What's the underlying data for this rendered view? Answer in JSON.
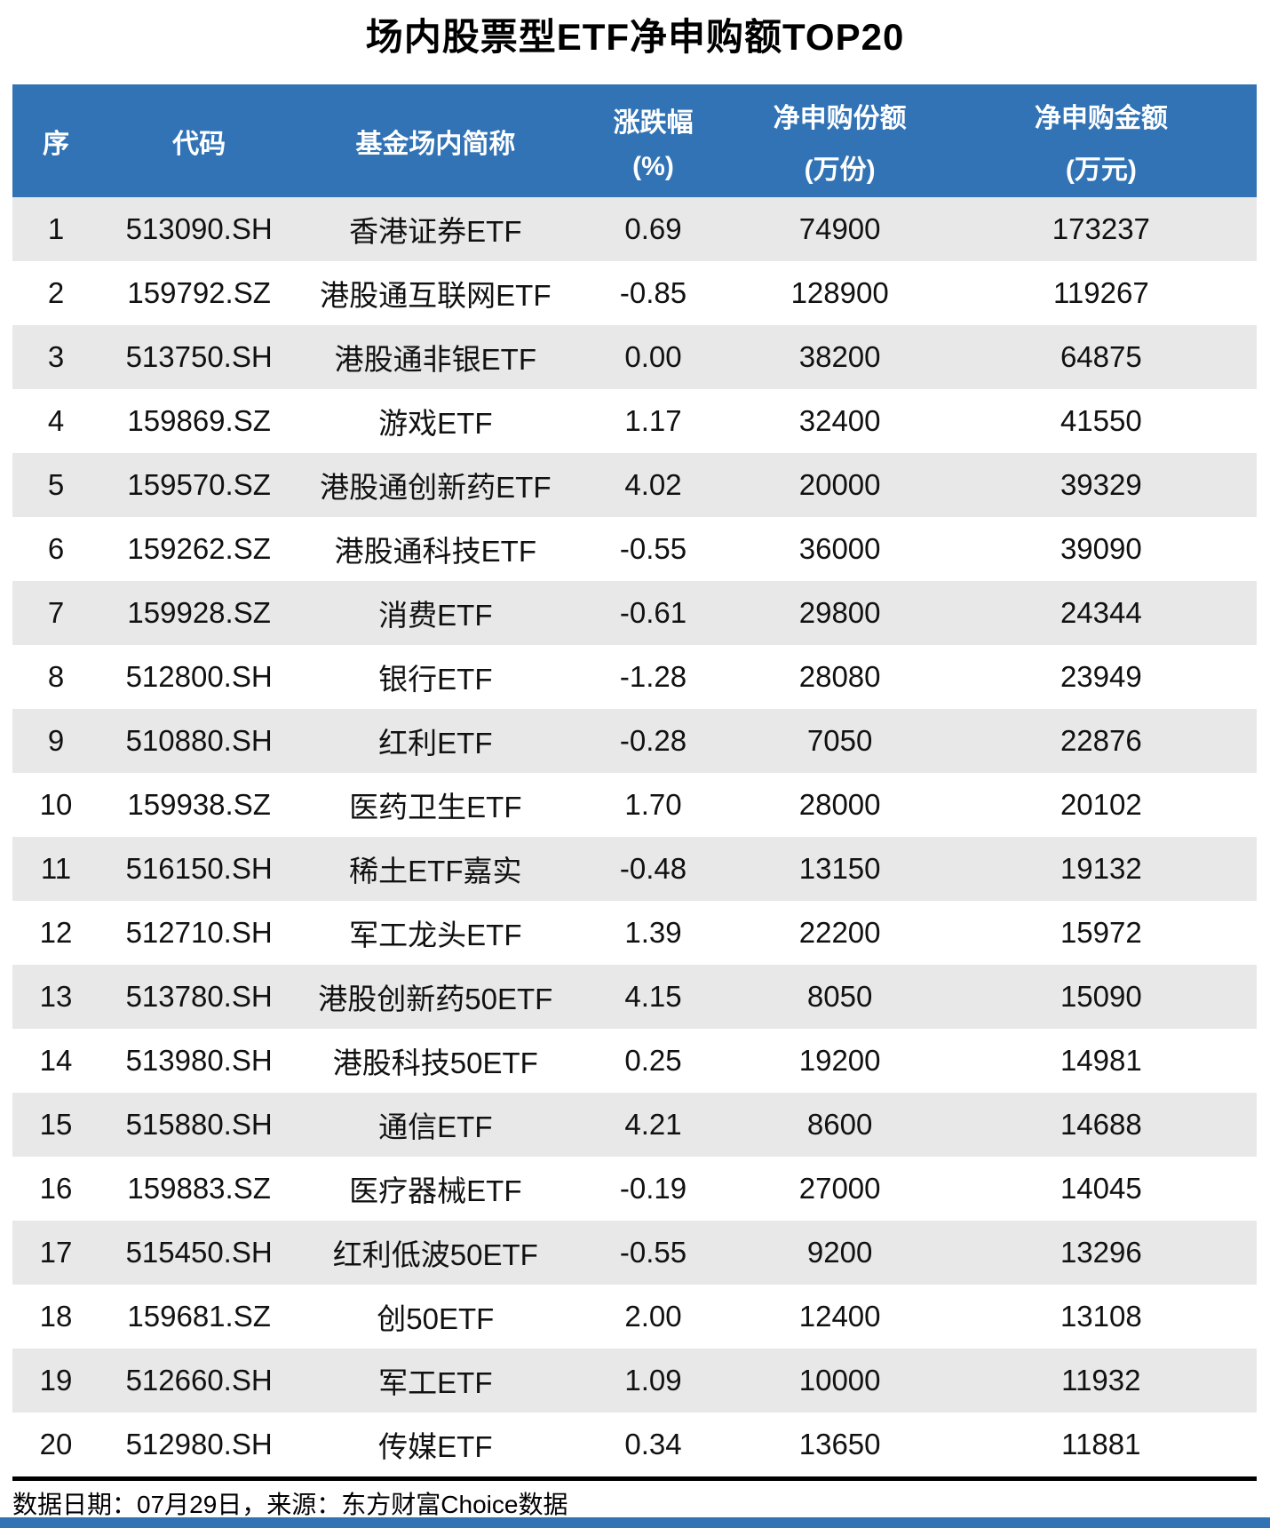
{
  "title": "场内股票型ETF净申购额TOP20",
  "colors": {
    "header_bg": "#3173B5",
    "header_text": "#FFFFFF",
    "alt_row_bg": "#E8E8E8",
    "body_text": "#111111",
    "divider": "#000000",
    "bottom_bar": "#3173B5"
  },
  "footer": {
    "note": "数据日期：07月29日，来源：东方财富Choice数据"
  },
  "chart_data": {
    "type": "table",
    "title": "场内股票型ETF净申购额TOP20",
    "columns": [
      {
        "line1": "序",
        "line2": ""
      },
      {
        "line1": "代码",
        "line2": ""
      },
      {
        "line1": "基金场内简称",
        "line2": ""
      },
      {
        "line1": "涨跌幅",
        "line2": "(%)"
      },
      {
        "line1": "净申购份额",
        "line2": "(万份)"
      },
      {
        "line1": "净申购金额",
        "line2": "(万元)"
      }
    ],
    "rows": [
      [
        "1",
        "513090.SH",
        "香港证券ETF",
        "0.69",
        "74900",
        "173237"
      ],
      [
        "2",
        "159792.SZ",
        "港股通互联网ETF",
        "-0.85",
        "128900",
        "119267"
      ],
      [
        "3",
        "513750.SH",
        "港股通非银ETF",
        "0.00",
        "38200",
        "64875"
      ],
      [
        "4",
        "159869.SZ",
        "游戏ETF",
        "1.17",
        "32400",
        "41550"
      ],
      [
        "5",
        "159570.SZ",
        "港股通创新药ETF",
        "4.02",
        "20000",
        "39329"
      ],
      [
        "6",
        "159262.SZ",
        "港股通科技ETF",
        "-0.55",
        "36000",
        "39090"
      ],
      [
        "7",
        "159928.SZ",
        "消费ETF",
        "-0.61",
        "29800",
        "24344"
      ],
      [
        "8",
        "512800.SH",
        "银行ETF",
        "-1.28",
        "28080",
        "23949"
      ],
      [
        "9",
        "510880.SH",
        "红利ETF",
        "-0.28",
        "7050",
        "22876"
      ],
      [
        "10",
        "159938.SZ",
        "医药卫生ETF",
        "1.70",
        "28000",
        "20102"
      ],
      [
        "11",
        "516150.SH",
        "稀土ETF嘉实",
        "-0.48",
        "13150",
        "19132"
      ],
      [
        "12",
        "512710.SH",
        "军工龙头ETF",
        "1.39",
        "22200",
        "15972"
      ],
      [
        "13",
        "513780.SH",
        "港股创新药50ETF",
        "4.15",
        "8050",
        "15090"
      ],
      [
        "14",
        "513980.SH",
        "港股科技50ETF",
        "0.25",
        "19200",
        "14981"
      ],
      [
        "15",
        "515880.SH",
        "通信ETF",
        "4.21",
        "8600",
        "14688"
      ],
      [
        "16",
        "159883.SZ",
        "医疗器械ETF",
        "-0.19",
        "27000",
        "14045"
      ],
      [
        "17",
        "515450.SH",
        "红利低波50ETF",
        "-0.55",
        "9200",
        "13296"
      ],
      [
        "18",
        "159681.SZ",
        "创50ETF",
        "2.00",
        "12400",
        "13108"
      ],
      [
        "19",
        "512660.SH",
        "军工ETF",
        "1.09",
        "10000",
        "11932"
      ],
      [
        "20",
        "512980.SH",
        "传媒ETF",
        "0.34",
        "13650",
        "11881"
      ]
    ]
  }
}
